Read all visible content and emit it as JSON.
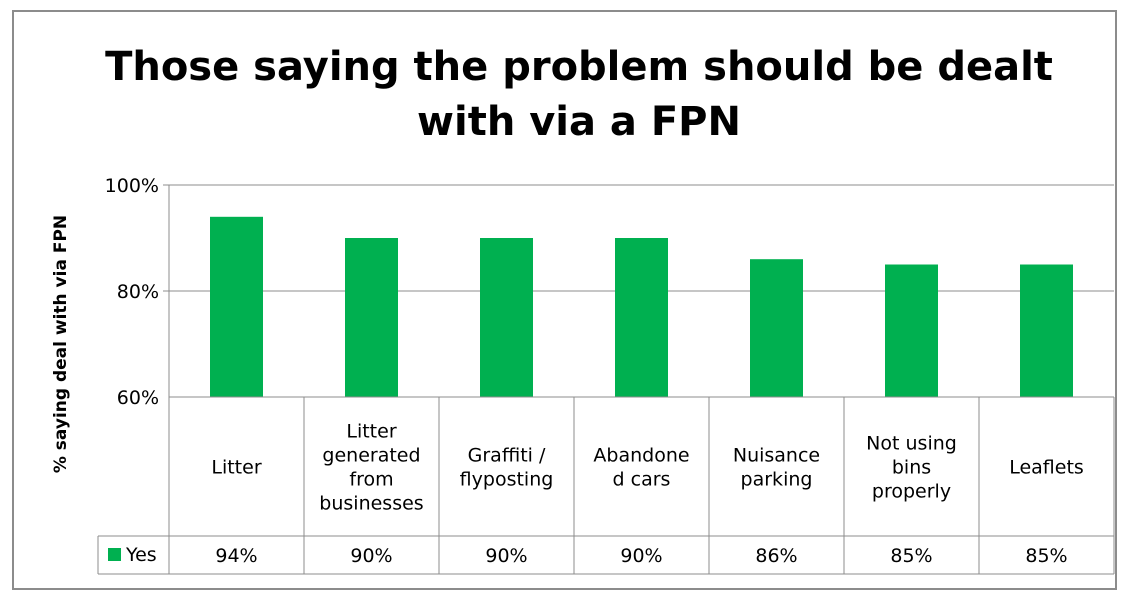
{
  "chart_data": {
    "type": "bar",
    "title_lines": [
      "Those saying the problem should be dealt",
      "with via a FPN"
    ],
    "ylabel": "% saying deal with via FPN",
    "xlabel": "",
    "ylim": [
      60,
      100
    ],
    "yticks": [
      60,
      80,
      100
    ],
    "ytick_labels": [
      "60%",
      "80%",
      "100%"
    ],
    "grid": true,
    "categories": [
      [
        "Litter"
      ],
      [
        "Litter",
        "generated",
        "from",
        "businesses"
      ],
      [
        "Graffiti /",
        "flyposting"
      ],
      [
        "Abandone",
        "d cars"
      ],
      [
        "Nuisance",
        "parking"
      ],
      [
        "Not using",
        "bins",
        "properly"
      ],
      [
        "Leaflets"
      ]
    ],
    "series": [
      {
        "name": "Yes",
        "values": [
          94,
          90,
          90,
          90,
          86,
          85,
          85
        ],
        "value_labels": [
          "94%",
          "90%",
          "90%",
          "90%",
          "86%",
          "85%",
          "85%"
        ],
        "color": "#00b050"
      }
    ],
    "data_table": true
  }
}
